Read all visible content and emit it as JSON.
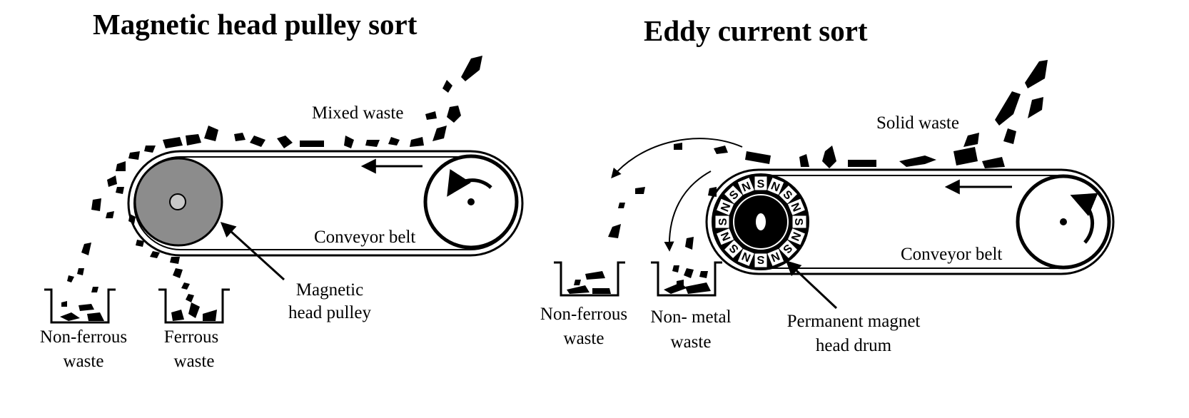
{
  "left": {
    "title": "Magnetic head pulley sort",
    "mixed_waste": "Mixed waste",
    "conveyor_belt": "Conveyor belt",
    "pulley_label": [
      "Magnetic",
      "head pulley"
    ],
    "bin1_label": [
      "Non-ferrous",
      "waste"
    ],
    "bin2_label": [
      "Ferrous",
      "waste"
    ]
  },
  "right": {
    "title": "Eddy current sort",
    "solid_waste": "Solid waste",
    "conveyor_belt": "Conveyor belt",
    "drum_label": [
      "Permanent magnet",
      "head drum"
    ],
    "bin1_label": [
      "Non-ferrous",
      "waste"
    ],
    "bin2_label": [
      "Non- metal",
      "waste"
    ],
    "magnet_poles": [
      "S",
      "N",
      "S",
      "N",
      "S",
      "N",
      "S",
      "N",
      "S",
      "N",
      "S",
      "N",
      "S",
      "N",
      "S",
      "N"
    ]
  },
  "colors": {
    "ink": "#000000",
    "pulley_fill": "#8c8c8c",
    "hub_fill": "#c8c8c8",
    "paper": "#ffffff"
  }
}
